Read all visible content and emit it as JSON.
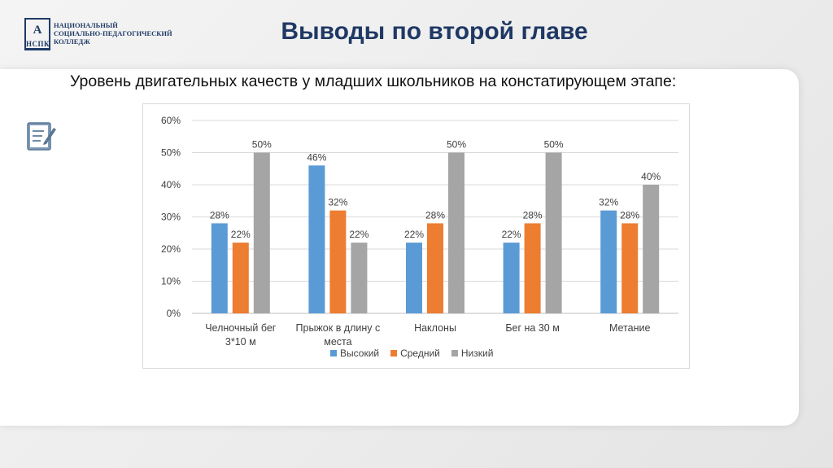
{
  "logo": {
    "emblem_letters": "А",
    "abbr": "НСПК",
    "lines": [
      "НАЦИОНАЛЬНЫЙ",
      "СОЦИАЛЬНО-ПЕДАГОГИЧЕСКИЙ",
      "КОЛЛЕДЖ"
    ]
  },
  "slide": {
    "title": "Выводы по второй главе",
    "subtitle": "Уровень двигательных качеств у младших школьников на констатирующем этапе:"
  },
  "icons": {
    "note": "edit-note-icon"
  },
  "chart_data": {
    "type": "bar",
    "categories": [
      [
        "Челночный бег",
        "3*10 м"
      ],
      [
        "Прыжок в длину с",
        "места"
      ],
      [
        "Наклоны"
      ],
      [
        "Бег на 30 м"
      ],
      [
        "Метание"
      ]
    ],
    "series": [
      {
        "name": "Высокий",
        "color": "#5b9bd5",
        "values": [
          28,
          46,
          22,
          22,
          32
        ]
      },
      {
        "name": "Средний",
        "color": "#ed7d31",
        "values": [
          22,
          32,
          28,
          28,
          28
        ]
      },
      {
        "name": "Низкий",
        "color": "#a5a5a5",
        "values": [
          50,
          22,
          50,
          50,
          40
        ]
      }
    ],
    "ylim": [
      0,
      60
    ],
    "yticks": [
      "0%",
      "10%",
      "20%",
      "30%",
      "40%",
      "50%",
      "60%"
    ],
    "value_suffix": "%",
    "grid": true,
    "legend_position": "bottom"
  }
}
